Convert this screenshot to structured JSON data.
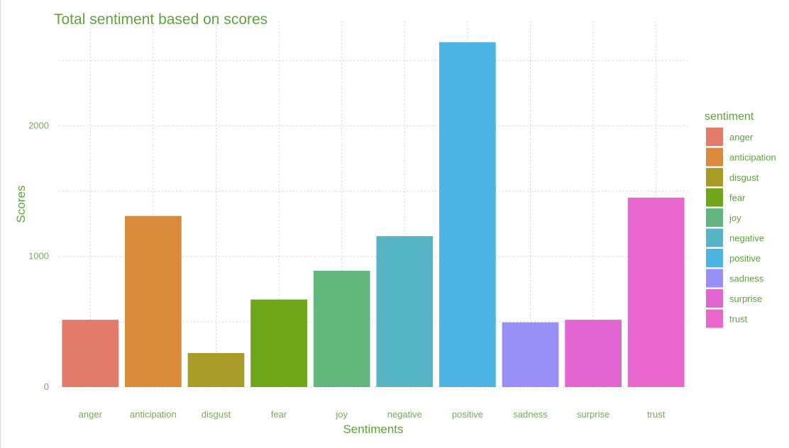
{
  "chart_data": {
    "type": "bar",
    "title": "Total sentiment based on scores",
    "xlabel": "Sentiments",
    "ylabel": "Scores",
    "categories": [
      "anger",
      "anticipation",
      "disgust",
      "fear",
      "joy",
      "negative",
      "positive",
      "sadness",
      "surprise",
      "trust"
    ],
    "values": [
      515,
      1310,
      260,
      670,
      890,
      1155,
      2640,
      495,
      515,
      1450
    ],
    "colors": [
      "#E27C6A",
      "#D98A3A",
      "#A89B28",
      "#6FA518",
      "#63B57E",
      "#56B4C4",
      "#4CB5E5",
      "#9A8FF7",
      "#E266D2",
      "#E966CD"
    ],
    "ylim": [
      0,
      2800
    ],
    "yticks": [
      0,
      1000,
      2000
    ],
    "grid": true,
    "legend": {
      "title": "sentiment",
      "position": "right",
      "items": [
        "anger",
        "anticipation",
        "disgust",
        "fear",
        "joy",
        "negative",
        "positive",
        "sadness",
        "surprise",
        "trust"
      ]
    }
  }
}
